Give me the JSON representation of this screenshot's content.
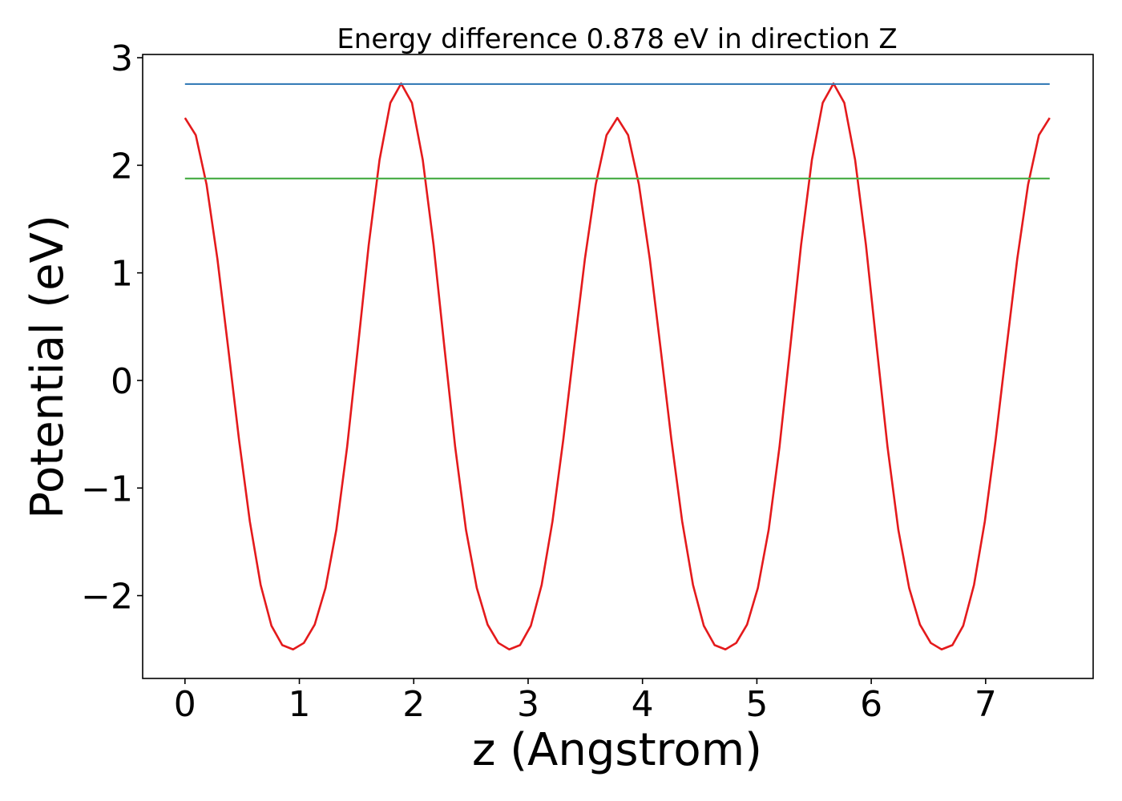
{
  "chart_data": {
    "type": "line",
    "title": "Energy difference 0.878 eV in direction Z",
    "xlabel": "z (Angstrom)",
    "ylabel": "Potential (eV)",
    "xlim": [
      -0.37,
      7.94
    ],
    "ylim": [
      -2.77,
      3.03
    ],
    "xticks": [
      0,
      1,
      2,
      3,
      4,
      5,
      6,
      7
    ],
    "xtick_labels": [
      "0",
      "1",
      "2",
      "3",
      "4",
      "5",
      "6",
      "7"
    ],
    "yticks": [
      -2,
      -1,
      0,
      1,
      2,
      3
    ],
    "ytick_labels": [
      "−2",
      "−1",
      "0",
      "1",
      "2",
      "3"
    ],
    "grid": false,
    "series": [
      {
        "kind": "curve",
        "color": "#e41a1c",
        "x": [
          0,
          0.0945,
          0.189,
          0.2835,
          0.378,
          0.4725,
          0.567,
          0.6615,
          0.756,
          0.8505,
          0.945,
          1.0395,
          1.134,
          1.2285,
          1.323,
          1.4175,
          1.512,
          1.6065,
          1.701,
          1.7955,
          1.89,
          1.9845,
          2.079,
          2.1735,
          2.268,
          2.3625,
          2.457,
          2.5515,
          2.646,
          2.7405,
          2.835,
          2.9295,
          3.024,
          3.1185,
          3.213,
          3.3075,
          3.402,
          3.4965,
          3.591,
          3.6855,
          3.78,
          3.8745,
          3.969,
          4.0635,
          4.158,
          4.2525,
          4.347,
          4.4415,
          4.536,
          4.6305,
          4.725,
          4.8195,
          4.914,
          5.0085,
          5.103,
          5.1975,
          5.292,
          5.3865,
          5.481,
          5.5755,
          5.67,
          5.7645,
          5.859,
          5.9535,
          6.048,
          6.1425,
          6.237,
          6.3315,
          6.426,
          6.5205,
          6.615,
          6.7095,
          6.804,
          6.8985,
          6.993,
          7.0875,
          7.182,
          7.2765,
          7.371,
          7.4655,
          7.56
        ],
        "y": [
          2.44,
          2.28,
          1.82,
          1.13,
          0.3,
          -0.55,
          -1.31,
          -1.9,
          -2.28,
          -2.46,
          -2.5,
          -2.44,
          -2.27,
          -1.93,
          -1.39,
          -0.62,
          0.31,
          1.26,
          2.05,
          2.58,
          2.76,
          2.58,
          2.05,
          1.26,
          0.31,
          -0.62,
          -1.39,
          -1.93,
          -2.27,
          -2.44,
          -2.5,
          -2.46,
          -2.28,
          -1.9,
          -1.31,
          -0.55,
          0.3,
          1.13,
          1.82,
          2.28,
          2.44,
          2.28,
          1.82,
          1.13,
          0.3,
          -0.55,
          -1.31,
          -1.9,
          -2.28,
          -2.46,
          -2.5,
          -2.44,
          -2.27,
          -1.93,
          -1.39,
          -0.62,
          0.31,
          1.26,
          2.05,
          2.58,
          2.76,
          2.58,
          2.05,
          1.26,
          0.31,
          -0.62,
          -1.39,
          -1.93,
          -2.27,
          -2.44,
          -2.5,
          -2.46,
          -2.28,
          -1.9,
          -1.31,
          -0.55,
          0.3,
          1.13,
          1.82,
          2.28,
          2.44
        ]
      },
      {
        "kind": "hline",
        "color": "#377eb8",
        "y": 2.755,
        "x": [
          0,
          7.56
        ]
      },
      {
        "kind": "hline",
        "color": "#4daf4a",
        "y": 1.877,
        "x": [
          0,
          7.56
        ]
      }
    ]
  }
}
